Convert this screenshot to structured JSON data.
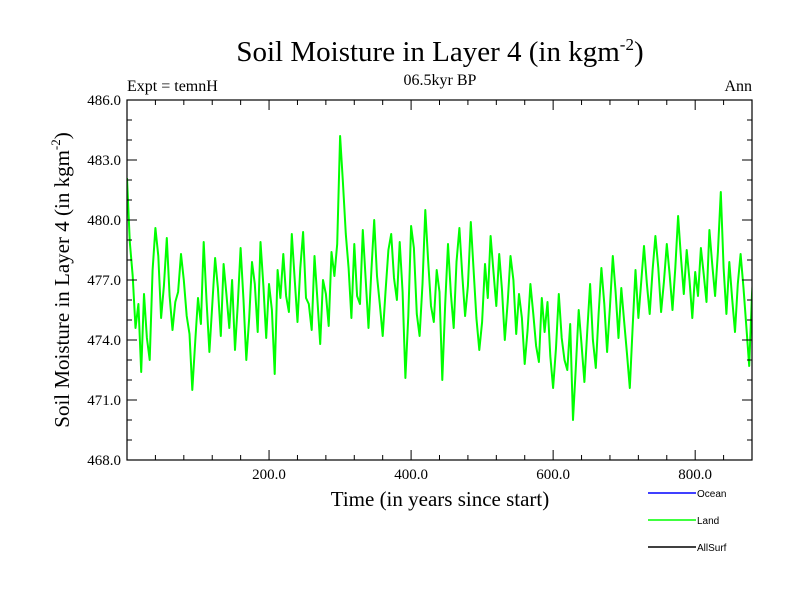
{
  "chart_data": {
    "type": "line",
    "title_main": "Soil Moisture in Layer 4 (in kgm",
    "title_sup": "-2",
    "title_close": ")",
    "subtitle": "06.5kyr BP",
    "left_label": "Expt = temnH",
    "right_label": "Ann",
    "xlabel": "Time (in years since start)",
    "ylabel_main": "Soil Moisture in Layer 4 (in kgm",
    "ylabel_sup": "-2",
    "ylabel_close": ")",
    "xlim": [
      0,
      880
    ],
    "ylim": [
      468,
      486
    ],
    "xticks": [
      {
        "value": 200,
        "label": "200.0"
      },
      {
        "value": 400,
        "label": "400.0"
      },
      {
        "value": 600,
        "label": "600.0"
      },
      {
        "value": 800,
        "label": "800.0"
      }
    ],
    "yticks": [
      {
        "value": 468,
        "label": "468.0"
      },
      {
        "value": 471,
        "label": "471.0"
      },
      {
        "value": 474,
        "label": "474.0"
      },
      {
        "value": 477,
        "label": "477.0"
      },
      {
        "value": 480,
        "label": "480.0"
      },
      {
        "value": 483,
        "label": "483.0"
      },
      {
        "value": 486,
        "label": "486.0"
      }
    ],
    "legend": [
      {
        "name": "Ocean",
        "color": "#0000ff"
      },
      {
        "name": "Land",
        "color": "#00ff00"
      },
      {
        "name": "AllSurf",
        "color": "#000000"
      }
    ],
    "series": [
      {
        "name": "Land",
        "color": "#00ff00",
        "x_start": 0,
        "x_step": 4,
        "values": [
          482.1,
          478.9,
          477.2,
          474.6,
          475.8,
          472.4,
          476.3,
          474.1,
          473.0,
          477.5,
          479.6,
          478.2,
          475.1,
          476.7,
          479.1,
          476.2,
          474.5,
          475.9,
          476.4,
          478.3,
          477.0,
          475.2,
          474.3,
          471.5,
          473.9,
          476.1,
          474.8,
          478.9,
          476.0,
          473.4,
          475.7,
          478.1,
          476.6,
          474.2,
          477.8,
          476.3,
          474.6,
          477.0,
          473.5,
          475.8,
          478.6,
          476.0,
          473.0,
          475.1,
          477.9,
          476.8,
          474.4,
          478.9,
          476.7,
          474.1,
          476.8,
          475.5,
          472.3,
          477.5,
          476.1,
          478.3,
          476.2,
          475.4,
          479.3,
          477.1,
          474.9,
          477.6,
          479.4,
          476.1,
          475.8,
          474.5,
          478.2,
          476.1,
          473.8,
          477.0,
          476.3,
          474.7,
          478.4,
          477.2,
          478.8,
          484.2,
          481.9,
          479.3,
          477.6,
          475.1,
          478.8,
          476.2,
          475.8,
          479.5,
          477.1,
          474.6,
          477.4,
          480.0,
          477.2,
          475.8,
          474.2,
          476.4,
          478.5,
          479.3,
          477.1,
          476.0,
          478.9,
          476.4,
          472.1,
          475.2,
          479.7,
          478.6,
          475.3,
          474.2,
          476.8,
          480.5,
          478.0,
          475.7,
          474.9,
          477.5,
          476.4,
          472.0,
          475.8,
          478.8,
          476.3,
          474.6,
          477.9,
          479.6,
          477.3,
          475.2,
          476.7,
          479.9,
          477.5,
          475.1,
          473.5,
          474.9,
          477.8,
          476.1,
          479.2,
          477.4,
          475.7,
          478.3,
          476.5,
          474.0,
          475.9,
          478.2,
          477.0,
          474.3,
          476.3,
          475.1,
          472.8,
          474.5,
          476.8,
          475.3,
          473.7,
          472.9,
          476.1,
          474.4,
          475.9,
          473.2,
          471.6,
          473.6,
          476.3,
          474.1,
          473.0,
          472.5,
          474.8,
          470.0,
          472.7,
          475.5,
          473.8,
          471.9,
          474.4,
          476.8,
          474.0,
          472.6,
          475.3,
          477.6,
          475.8,
          473.4,
          475.7,
          478.2,
          476.4,
          474.1,
          476.6,
          474.9,
          473.3,
          471.6,
          474.7,
          477.5,
          475.1,
          476.9,
          478.7,
          476.8,
          475.3,
          477.5,
          479.2,
          477.6,
          475.4,
          476.9,
          478.8,
          477.3,
          475.5,
          477.6,
          480.2,
          478.1,
          476.3,
          478.5,
          477.0,
          475.1,
          477.4,
          476.2,
          478.6,
          477.3,
          475.9,
          479.5,
          477.8,
          476.2,
          478.4,
          481.4,
          477.6,
          475.3,
          477.9,
          476.1,
          474.4,
          476.8,
          478.3,
          476.6,
          474.7,
          472.7,
          476.3,
          478.5,
          476.9,
          475.2,
          477.8,
          479.2,
          477.1,
          475.6,
          477.3,
          475.7,
          474.8,
          477.2,
          479.4,
          477.5,
          475.5,
          477.1,
          479.3,
          477.2,
          474.9,
          473.4,
          476.2,
          478.0,
          476.4,
          474.2,
          476.5,
          478.1,
          475.9,
          472.9,
          474.8,
          477.5,
          476.0,
          474.1,
          476.7,
          478.6,
          477.0,
          475.3,
          477.6,
          479.8,
          477.4,
          475.0,
          476.3,
          478.4,
          476.8,
          475.2,
          477.1,
          475.6,
          473.7,
          476.0,
          478.9,
          477.1,
          475.4,
          477.3,
          479.0,
          476.9,
          473.6,
          475.9,
          477.8,
          476.2,
          474.6,
          476.9,
          478.7,
          476.8,
          474.9,
          477.4,
          479.6,
          481.1,
          478.1,
          476.4,
          478.2,
          476.1,
          474.2,
          476.8,
          478.7,
          476.3,
          474.5,
          476.9,
          478.1,
          475.8,
          473.2,
          475.8,
          477.6,
          476.1,
          477.9,
          476.7,
          478.5,
          476.4,
          474.7,
          476.9,
          478.9,
          480.6,
          477.9,
          475.6,
          477.4,
          479.2,
          477.0,
          474.9,
          476.6,
          478.4,
          476.3,
          472.6,
          475.7,
          477.8,
          476.0,
          474.3,
          476.5,
          478.1,
          476.0,
          474.2,
          477.3,
          479.5,
          477.2,
          475.1,
          477.0,
          478.8,
          480.9,
          478.2,
          476.2,
          478.0,
          476.1,
          477.8,
          480.2,
          477.7,
          475.6,
          477.4,
          479.3,
          477.1,
          475.0,
          477.2,
          479.0,
          481.6,
          478.1,
          476.0,
          477.8,
          476.3,
          478.5,
          481.4,
          478.3,
          476.1,
          477.7,
          479.4,
          478.0,
          475.5,
          477.3,
          480.7,
          482.3,
          479.4,
          476.9,
          478.6,
          477.1,
          475.3,
          477.8,
          479.6,
          477.5,
          475.4,
          474.3,
          471.7,
          474.9,
          477.2,
          475.7,
          474.1,
          476.4,
          474.5
        ]
      }
    ]
  }
}
